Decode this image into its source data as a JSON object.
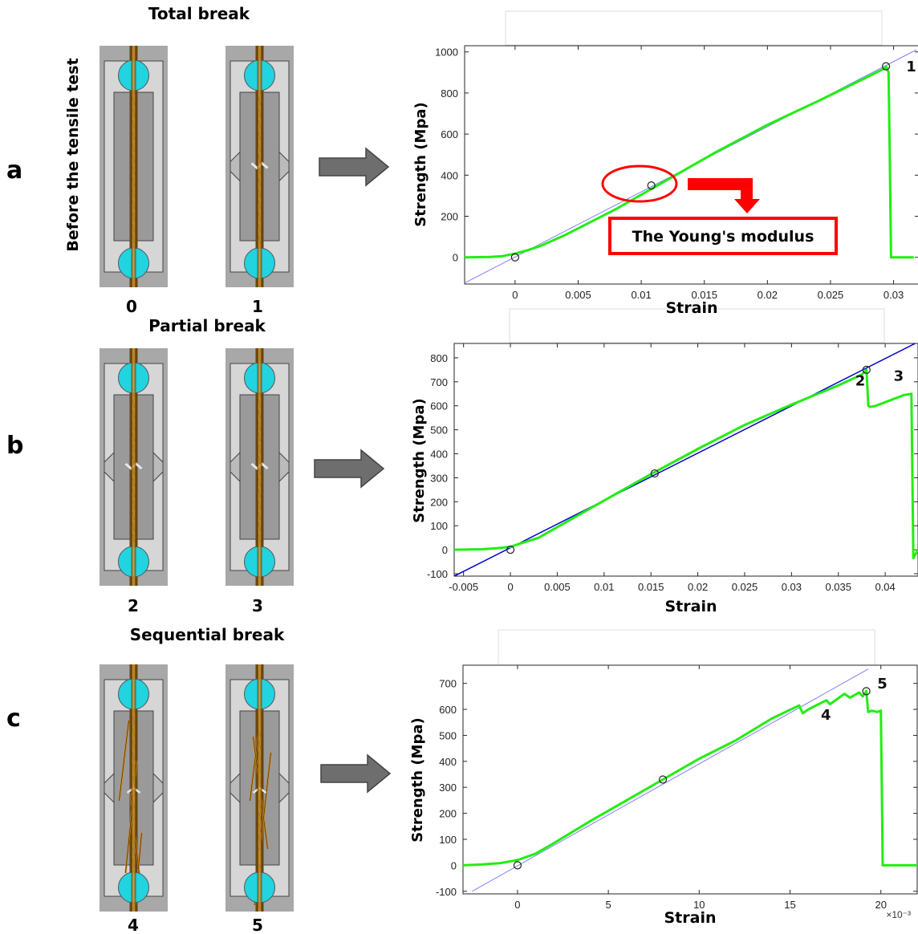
{
  "panels": [
    {
      "letter": "a",
      "title": "Total break",
      "side_label": "Before the tensile test",
      "specimens": [
        "0",
        "1"
      ],
      "specimen_states": [
        "intact",
        "total"
      ]
    },
    {
      "letter": "b",
      "title": "Partial break",
      "specimens": [
        "2",
        "3"
      ],
      "specimen_states": [
        "partial",
        "partial"
      ]
    },
    {
      "letter": "c",
      "title": "Sequential break",
      "specimens": [
        "4",
        "5"
      ],
      "specimen_states": [
        "sequential",
        "sequential2"
      ]
    }
  ],
  "colors": {
    "curve": "#22ee11",
    "fit_line_a": "#8080ff",
    "fit_line_b": "#0000cc",
    "fit_line_c": "#8080ff",
    "annotation": "#ff0000",
    "clamp": "#22d3e0",
    "fiber": "#c8861a",
    "arrow": "#6e6e6e"
  },
  "chart_data": [
    {
      "type": "line",
      "xlabel": "Strain",
      "ylabel": "Strength (Mpa)",
      "xlim": [
        -0.004,
        0.032
      ],
      "ylim": [
        -130,
        1030
      ],
      "xticks": [
        0,
        0.005,
        0.01,
        0.015,
        0.02,
        0.025,
        0.03
      ],
      "xtick_labels": [
        "0",
        "0.005",
        "0.01",
        "0.015",
        "0.02",
        "0.025",
        "0.03"
      ],
      "yticks": [
        0,
        200,
        400,
        600,
        800,
        1000
      ],
      "ytick_labels": [
        "0",
        "200",
        "400",
        "600",
        "800",
        "1000"
      ],
      "series": [
        {
          "x": [
            -0.004,
            -0.002,
            -0.001,
            0,
            0.001,
            0.002,
            0.004,
            0.008,
            0.012,
            0.016,
            0.02,
            0.024,
            0.028,
            0.0293,
            0.0294,
            0.0296,
            0.0297,
            0.0298,
            0.0316
          ],
          "y": [
            0,
            2,
            6,
            18,
            35,
            55,
            110,
            235,
            375,
            515,
            645,
            760,
            880,
            920,
            930,
            900,
            500,
            0,
            0
          ]
        }
      ],
      "fit_line": {
        "x": [
          -0.004,
          0.0318
        ],
        "y": [
          -125,
          1010
        ]
      },
      "markers": [
        {
          "x": 0,
          "y": 0
        },
        {
          "x": 0.0108,
          "y": 350
        },
        {
          "x": 0.0294,
          "y": 930
        }
      ],
      "point_labels": [
        {
          "text": "1",
          "x": 0.031,
          "y": 905
        }
      ],
      "annotation": {
        "text": "The Young's modulus"
      }
    },
    {
      "type": "line",
      "xlabel": "Strain",
      "ylabel": "Strength (Mpa)",
      "xlim": [
        -0.006,
        0.0435
      ],
      "ylim": [
        -110,
        860
      ],
      "xticks": [
        -0.005,
        0,
        0.005,
        0.01,
        0.015,
        0.02,
        0.025,
        0.03,
        0.035,
        0.04
      ],
      "xtick_labels": [
        "-0.005",
        "0",
        "0.005",
        "0.01",
        "0.015",
        "0.02",
        "0.025",
        "0.03",
        "0.035",
        "0.04"
      ],
      "yticks": [
        -100,
        0,
        100,
        200,
        300,
        400,
        500,
        600,
        700,
        800
      ],
      "ytick_labels": [
        "-100",
        "0",
        "100",
        "200",
        "300",
        "400",
        "500",
        "600",
        "700",
        "800"
      ],
      "series": [
        {
          "x": [
            -0.006,
            -0.003,
            -0.0015,
            0,
            0.001,
            0.003,
            0.01,
            0.015,
            0.02,
            0.025,
            0.03,
            0.035,
            0.0375,
            0.038,
            0.0382,
            0.0384,
            0.039,
            0.042,
            0.0428,
            0.0429,
            0.043,
            0.0435
          ],
          "y": [
            0,
            2,
            6,
            12,
            25,
            50,
            205,
            315,
            420,
            520,
            605,
            685,
            730,
            750,
            600,
            595,
            600,
            645,
            650,
            300,
            -35,
            0
          ]
        }
      ],
      "fit_line": {
        "x": [
          -0.006,
          0.0432
        ],
        "y": [
          -110,
          860
        ]
      },
      "markers": [
        {
          "x": 0,
          "y": 0
        },
        {
          "x": 0.0154,
          "y": 318
        },
        {
          "x": 0.038,
          "y": 750
        }
      ],
      "point_labels": [
        {
          "text": "2",
          "x": 0.0368,
          "y": 685
        },
        {
          "text": "3",
          "x": 0.0409,
          "y": 705
        }
      ]
    },
    {
      "type": "line",
      "xlabel": "Strain",
      "ylabel": "Strength (Mpa)",
      "xlim": [
        -3,
        22
      ],
      "ylim": [
        -110,
        770
      ],
      "x_scale_label": "×10⁻³",
      "xticks": [
        0,
        5,
        10,
        15,
        20
      ],
      "xtick_labels": [
        "0",
        "5",
        "10",
        "15",
        "20"
      ],
      "yticks": [
        -100,
        0,
        100,
        200,
        300,
        400,
        500,
        600,
        700
      ],
      "ytick_labels": [
        "-100",
        "0",
        "100",
        "200",
        "300",
        "400",
        "500",
        "600",
        "700"
      ],
      "series": [
        {
          "x": [
            -3,
            -2,
            -1,
            0,
            1,
            2,
            4,
            6,
            8,
            10,
            12,
            14,
            15.5,
            15.7,
            16,
            17,
            17.2,
            18,
            18.3,
            18.8,
            19,
            19.2,
            19.3,
            19.5,
            19.8,
            20,
            20.05,
            20.1,
            22
          ],
          "y": [
            0,
            3,
            8,
            20,
            45,
            85,
            170,
            250,
            330,
            410,
            480,
            565,
            615,
            585,
            600,
            635,
            620,
            660,
            645,
            665,
            650,
            670,
            590,
            595,
            590,
            595,
            300,
            0,
            0
          ]
        }
      ],
      "fit_line": {
        "x": [
          -2.5,
          19.3
        ],
        "y": [
          -100,
          755
        ]
      },
      "markers": [
        {
          "x": 0,
          "y": 0
        },
        {
          "x": 8,
          "y": 330
        },
        {
          "x": 19.2,
          "y": 670
        }
      ],
      "point_labels": [
        {
          "text": "4",
          "x": 16.7,
          "y": 560
        },
        {
          "text": "5",
          "x": 19.8,
          "y": 680
        }
      ]
    }
  ]
}
